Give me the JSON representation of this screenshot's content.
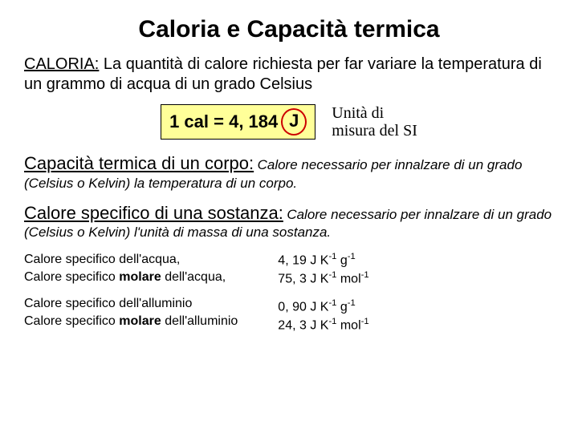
{
  "title": "Caloria e Capacità termica",
  "caloria": {
    "term": "CALORIA:",
    "def": " La quantità di calore richiesta per far variare la temperatura di un grammo di acqua di un grado Celsius"
  },
  "formula": {
    "lhs": "1 cal = 4, 184",
    "unit": "J"
  },
  "unit_label": {
    "line1": "Unità di",
    "line2": "misura del SI"
  },
  "capacita": {
    "head": "Capacità termica di un corpo:",
    "desc": " Calore necessario per innalzare di un grado (Celsius o Kelvin) la temperatura di un corpo."
  },
  "specifico": {
    "head": "Calore specifico di una sostanza:",
    "desc": " Calore necessario per innalzare di un grado (Celsius o Kelvin) l'unità di massa di una sostanza."
  },
  "rows": {
    "water1": "Calore specifico dell'acqua,",
    "water2_a": "Calore specifico ",
    "water2_b": "molare",
    "water2_c": " dell'acqua,",
    "al1": "Calore specifico dell'alluminio",
    "al2_a": "Calore specifico ",
    "al2_b": "molare",
    "al2_c": " dell'alluminio",
    "val_water1": "4, 19 J K",
    "val_water1_g": " g",
    "val_water2": "75, 3 J K",
    "val_water2_m": " mol",
    "val_al1": "0, 90 J K",
    "val_al1_g": " g",
    "val_al2": "24, 3 J K",
    "val_al2_m": " mol",
    "sup": "-1"
  },
  "colors": {
    "highlight_bg": "#ffff99",
    "circle_border": "#cc0000"
  }
}
